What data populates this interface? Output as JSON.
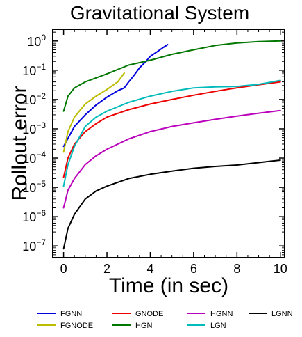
{
  "chart_data": {
    "type": "line",
    "title": "Gravitational System",
    "xlabel": "Time (in sec)",
    "ylabel": "Rollout error",
    "xlim": [
      -0.5,
      10.2
    ],
    "ylim_log10": [
      -7.4,
      0.4
    ],
    "yscale": "log",
    "grid": false,
    "legend_position": "bottom",
    "x_ticks": [
      {
        "value": 0,
        "label": "0"
      },
      {
        "value": 2,
        "label": "2"
      },
      {
        "value": 4,
        "label": "4"
      },
      {
        "value": 6,
        "label": "6"
      },
      {
        "value": 8,
        "label": "8"
      },
      {
        "value": 10,
        "label": "10"
      }
    ],
    "y_ticks": [
      {
        "exp": 0,
        "base": "10",
        "sup": "0"
      },
      {
        "exp": -1,
        "base": "10",
        "sup": "−1"
      },
      {
        "exp": -2,
        "base": "10",
        "sup": "−2"
      },
      {
        "exp": -3,
        "base": "10",
        "sup": "−3"
      },
      {
        "exp": -4,
        "base": "10",
        "sup": "−4"
      },
      {
        "exp": -5,
        "base": "10",
        "sup": "−5"
      },
      {
        "exp": -6,
        "base": "10",
        "sup": "−6"
      },
      {
        "exp": -7,
        "base": "10",
        "sup": "−7"
      }
    ],
    "series": [
      {
        "name": "FGNN",
        "color": "#0000dd",
        "x": [
          0,
          0.5,
          1,
          1.5,
          2,
          2.5,
          2.8,
          3,
          3.2,
          3.5,
          3.8,
          4,
          4.3,
          4.6,
          4.8
        ],
        "y": [
          0.00025,
          0.0012,
          0.003,
          0.0065,
          0.012,
          0.02,
          0.025,
          0.04,
          0.06,
          0.12,
          0.2,
          0.3,
          0.42,
          0.6,
          0.75
        ]
      },
      {
        "name": "FGNODE",
        "color": "#bbbb00",
        "x": [
          0,
          0.2,
          0.5,
          1,
          1.5,
          2,
          2.5,
          2.8
        ],
        "y": [
          0.00016,
          0.0008,
          0.0025,
          0.007,
          0.013,
          0.022,
          0.04,
          0.08
        ]
      },
      {
        "name": "GNODE",
        "color": "#ee0000",
        "x": [
          0,
          0.2,
          0.5,
          1,
          1.5,
          2,
          3,
          4,
          5,
          6,
          7,
          8,
          9,
          10
        ],
        "y": [
          2.2e-05,
          0.0001,
          0.0003,
          0.0008,
          0.0015,
          0.0025,
          0.0045,
          0.007,
          0.01,
          0.014,
          0.019,
          0.025,
          0.032,
          0.04
        ]
      },
      {
        "name": "HGN",
        "color": "#007700",
        "x": [
          0,
          0.2,
          0.5,
          1,
          1.5,
          2,
          3,
          4,
          5,
          6,
          7,
          8,
          9,
          10
        ],
        "y": [
          0.004,
          0.013,
          0.025,
          0.04,
          0.055,
          0.075,
          0.15,
          0.22,
          0.35,
          0.5,
          0.7,
          0.85,
          0.95,
          1.0
        ]
      },
      {
        "name": "HGNN",
        "color": "#bb00bb",
        "x": [
          0,
          0.2,
          0.5,
          1,
          1.5,
          2,
          3,
          4,
          5,
          6,
          7,
          8,
          9,
          10
        ],
        "y": [
          2e-06,
          8e-06,
          2e-05,
          6e-05,
          0.00012,
          0.0002,
          0.00045,
          0.0008,
          0.0012,
          0.0016,
          0.0021,
          0.0027,
          0.0034,
          0.0042
        ]
      },
      {
        "name": "LGN",
        "color": "#00bbbb",
        "x": [
          0,
          0.2,
          0.5,
          1,
          1.5,
          2,
          3,
          4,
          5,
          6,
          7,
          8,
          9,
          10
        ],
        "y": [
          1.1e-05,
          6e-05,
          0.00025,
          0.0012,
          0.0025,
          0.004,
          0.008,
          0.013,
          0.019,
          0.025,
          0.027,
          0.028,
          0.033,
          0.045
        ]
      },
      {
        "name": "LGNN",
        "color": "#000000",
        "x": [
          0,
          0.2,
          0.5,
          1,
          1.5,
          2,
          3,
          4,
          5,
          6,
          7,
          8,
          9,
          10
        ],
        "y": [
          8e-08,
          4e-07,
          1.2e-06,
          4e-06,
          7.5e-06,
          1.1e-05,
          2e-05,
          2.8e-05,
          3.6e-05,
          4.5e-05,
          5.2e-05,
          5.8e-05,
          7e-05,
          8.5e-05
        ]
      }
    ]
  }
}
